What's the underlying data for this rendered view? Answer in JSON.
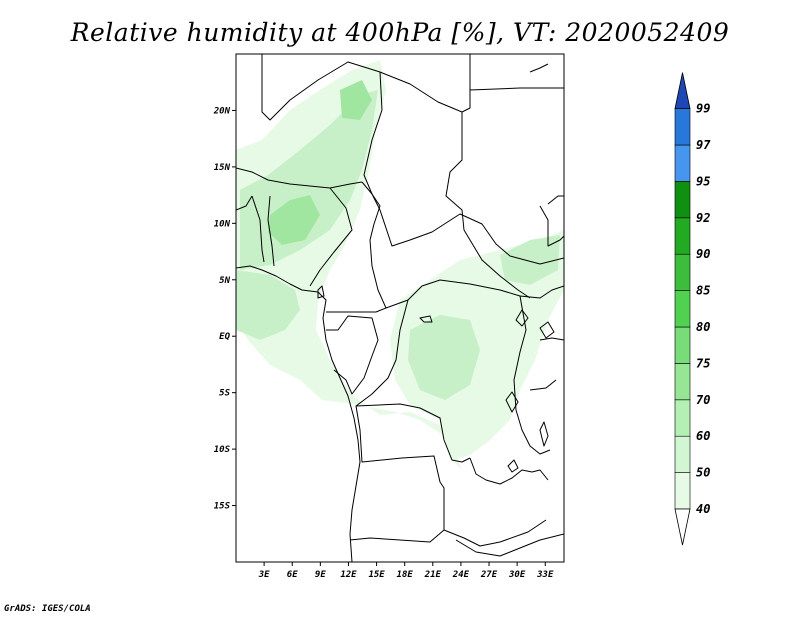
{
  "title": "Relative humidity at 400hPa [%], VT: 2020052409",
  "credit": "GrADS: IGES/COLA",
  "map": {
    "lon_range": [
      0,
      35
    ],
    "lat_range": [
      -20,
      25
    ],
    "lat_ticks": [
      {
        "value": 20,
        "label": "20N"
      },
      {
        "value": 15,
        "label": "15N"
      },
      {
        "value": 10,
        "label": "10N"
      },
      {
        "value": 5,
        "label": "5N"
      },
      {
        "value": 0,
        "label": "EQ"
      },
      {
        "value": -5,
        "label": "5S"
      },
      {
        "value": -10,
        "label": "10S"
      },
      {
        "value": -15,
        "label": "15S"
      }
    ],
    "lon_ticks": [
      {
        "value": 3,
        "label": "3E"
      },
      {
        "value": 6,
        "label": "6E"
      },
      {
        "value": 9,
        "label": "9E"
      },
      {
        "value": 12,
        "label": "12E"
      },
      {
        "value": 15,
        "label": "15E"
      },
      {
        "value": 18,
        "label": "18E"
      },
      {
        "value": 21,
        "label": "21E"
      },
      {
        "value": 24,
        "label": "24E"
      },
      {
        "value": 27,
        "label": "27E"
      },
      {
        "value": 30,
        "label": "30E"
      },
      {
        "value": 33,
        "label": "33E"
      }
    ]
  },
  "colorbar": {
    "levels": [
      {
        "label": "40",
        "color": "#e6fae6"
      },
      {
        "label": "50",
        "color": "#d2f5d2"
      },
      {
        "label": "60",
        "color": "#b4f0b4"
      },
      {
        "label": "70",
        "color": "#96e696"
      },
      {
        "label": "75",
        "color": "#78dc78"
      },
      {
        "label": "80",
        "color": "#50d250"
      },
      {
        "label": "85",
        "color": "#3cbe3c"
      },
      {
        "label": "90",
        "color": "#22aa22"
      },
      {
        "label": "92",
        "color": "#109010"
      },
      {
        "label": "95",
        "color": "#4696f0"
      },
      {
        "label": "97",
        "color": "#2878dc"
      },
      {
        "label": "99",
        "color": "#1e5ac8"
      }
    ],
    "below_color": "#ffffff",
    "above_color": "#1e46b4"
  },
  "colors": {
    "humid_light": "#e6fae6",
    "humid_mid": "#c8f0c8",
    "humid_strong": "#a0e6a0",
    "humid_peak": "#82dc82"
  }
}
